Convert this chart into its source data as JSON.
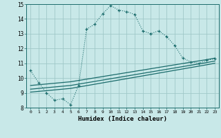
{
  "xlabel": "Humidex (Indice chaleur)",
  "background_color": "#c8e8e8",
  "grid_color": "#a0c8c8",
  "line_color": "#1a6b6b",
  "xlim": [
    -0.5,
    23.5
  ],
  "ylim": [
    8,
    15
  ],
  "xticks": [
    0,
    1,
    2,
    3,
    4,
    5,
    6,
    7,
    8,
    9,
    10,
    11,
    12,
    13,
    14,
    15,
    16,
    17,
    18,
    19,
    20,
    21,
    22,
    23
  ],
  "yticks": [
    8,
    9,
    10,
    11,
    12,
    13,
    14,
    15
  ],
  "main_x": [
    0,
    1,
    2,
    3,
    4,
    5,
    6,
    7,
    8,
    9,
    10,
    11,
    12,
    13,
    14,
    15,
    16,
    17,
    18,
    19,
    20,
    21,
    22,
    23
  ],
  "main_y": [
    10.5,
    9.7,
    9.0,
    8.5,
    8.6,
    8.2,
    9.5,
    13.3,
    13.65,
    14.35,
    14.9,
    14.6,
    14.5,
    14.3,
    13.2,
    13.0,
    13.2,
    12.8,
    12.2,
    11.35,
    11.1,
    11.0,
    11.2,
    11.3
  ],
  "line1_x": [
    0,
    5,
    22,
    23
  ],
  "line1_y": [
    9.05,
    9.3,
    10.9,
    11.0
  ],
  "line2_x": [
    0,
    5,
    22,
    23
  ],
  "line2_y": [
    9.25,
    9.5,
    11.05,
    11.15
  ],
  "line3_x": [
    0,
    5,
    22,
    23
  ],
  "line3_y": [
    9.5,
    9.75,
    11.25,
    11.35
  ]
}
